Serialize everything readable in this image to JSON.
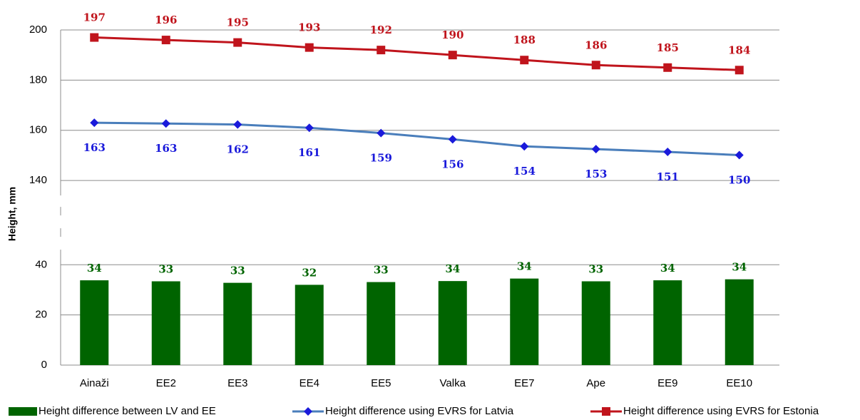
{
  "chart_data": {
    "type": "bar-line",
    "y_label": "Height, mm",
    "categories": [
      "Ainaži",
      "EE2",
      "EE3",
      "EE4",
      "EE5",
      "Valka",
      "EE7",
      "Ape",
      "EE9",
      "EE10"
    ],
    "ylim": [
      [
        0,
        46
      ],
      [
        134,
        200
      ]
    ],
    "yticks": [
      0,
      20,
      40,
      140,
      160,
      180,
      200
    ],
    "grid": true,
    "legend": "bottom",
    "series": [
      {
        "name": "Height difference between LV and EE",
        "type": "bar",
        "color": "#006400",
        "values": [
          33.8,
          33.4,
          32.8,
          32.0,
          33.1,
          33.5,
          34.5,
          33.4,
          33.8,
          34.2
        ],
        "value_labels": [
          "34",
          "33",
          "33",
          "32",
          "33",
          "34",
          "34",
          "33",
          "34",
          "34"
        ]
      },
      {
        "name": "Height difference using EVRS for Latvia",
        "type": "line",
        "marker": "diamond",
        "color": "#4a7ebb",
        "label_color": "#1a1adb",
        "values": [
          163,
          162.7,
          162.3,
          161,
          158.9,
          156.4,
          153.6,
          152.5,
          151.4,
          150.1
        ],
        "value_labels": [
          "163",
          "163",
          "162",
          "161",
          "159",
          "156",
          "154",
          "153",
          "151",
          "150"
        ]
      },
      {
        "name": "Height difference using EVRS for Estonia",
        "type": "line",
        "marker": "square",
        "color": "#c0141c",
        "label_color": "#c0141c",
        "values": [
          197,
          196,
          195,
          193,
          192,
          190,
          188,
          186,
          185,
          184
        ],
        "value_labels": [
          "197",
          "196",
          "195",
          "193",
          "192",
          "190",
          "188",
          "186",
          "185",
          "184"
        ]
      }
    ]
  }
}
